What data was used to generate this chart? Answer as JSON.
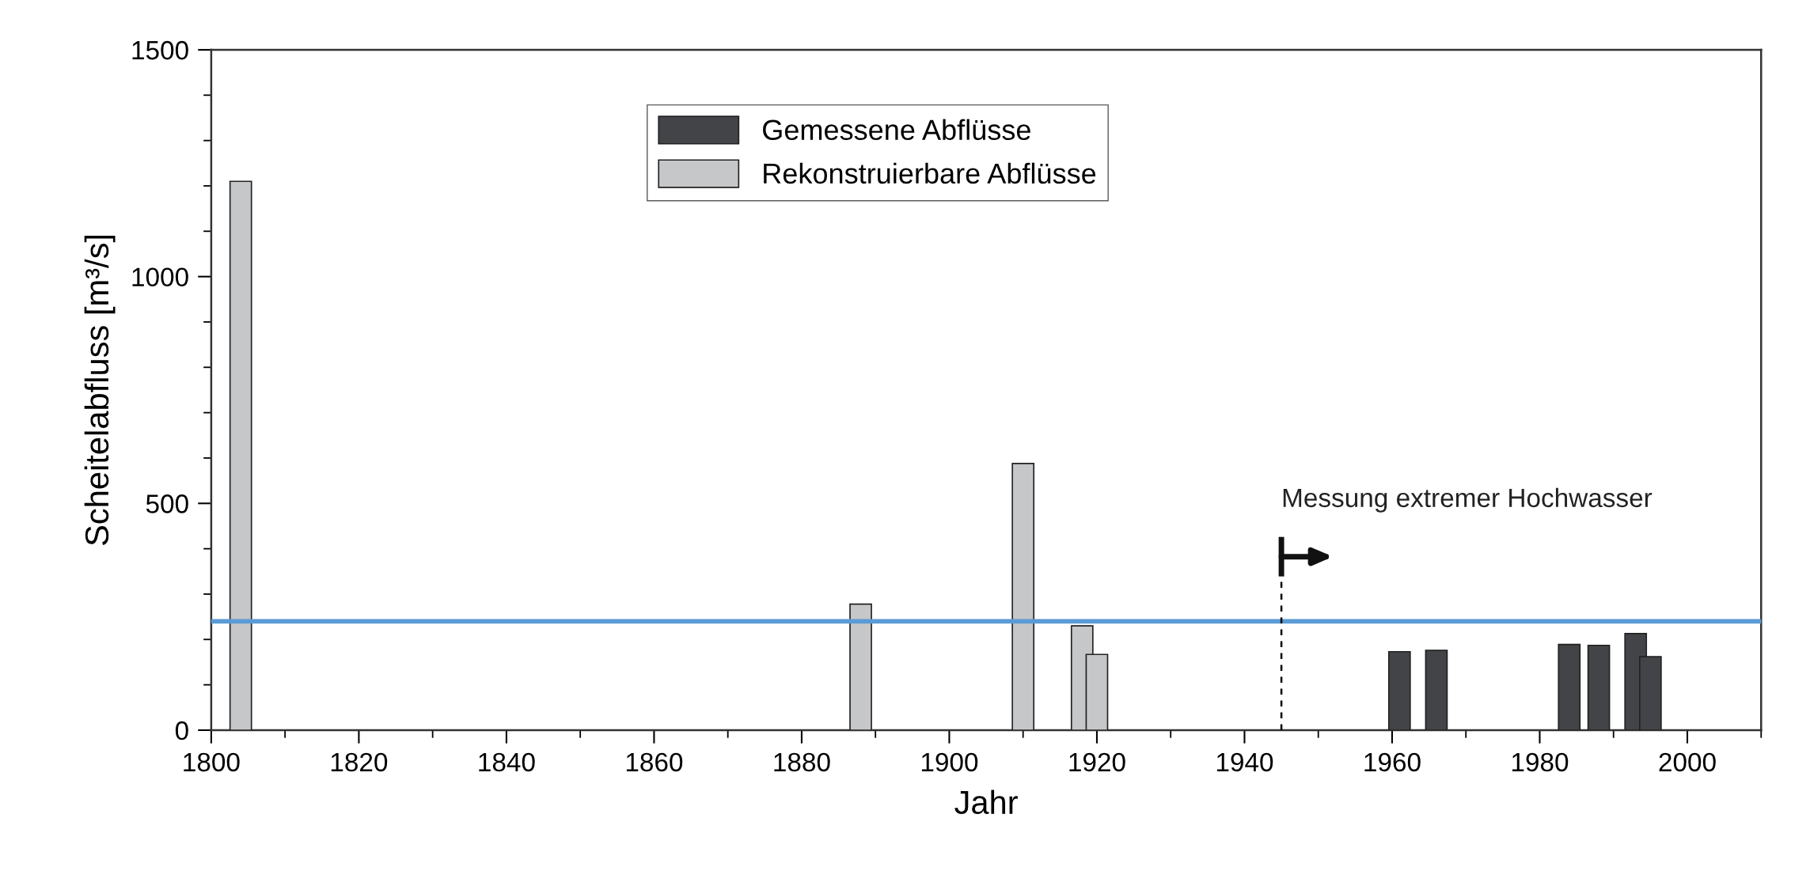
{
  "chart_data": {
    "type": "bar",
    "xlabel": "Jahr",
    "ylabel": "Scheitelabfluss [m³/s]",
    "xlim": [
      1800,
      2010
    ],
    "xticks": [
      1800,
      1820,
      1840,
      1860,
      1880,
      1900,
      1920,
      1940,
      1960,
      1980,
      2000
    ],
    "ylim": [
      0,
      1500
    ],
    "yticks": [
      0,
      500,
      1000,
      1500
    ],
    "grid": false,
    "legend": "top",
    "series": [
      {
        "name": "Gemessene Abflüsse",
        "color": "#424447",
        "x": [
          1961,
          1966,
          1984,
          1988,
          1993,
          1995
        ],
        "values": [
          173,
          176,
          189,
          187,
          213,
          162
        ]
      },
      {
        "name": "Rekonstruierbare Abflüsse",
        "color": "#c6c7c9",
        "x": [
          1804,
          1888,
          1910,
          1918,
          1920
        ],
        "values": [
          1210,
          278,
          588,
          230,
          167
        ]
      }
    ],
    "ref_lines": [
      {
        "axis": "y",
        "value": 240,
        "color": "#5b9bd5",
        "line_style": "solid"
      },
      {
        "axis": "x",
        "value": 1945,
        "color": "#000000",
        "line_style": "dashed"
      }
    ],
    "annotations": [
      "Messung extremer Hochwasser"
    ]
  }
}
